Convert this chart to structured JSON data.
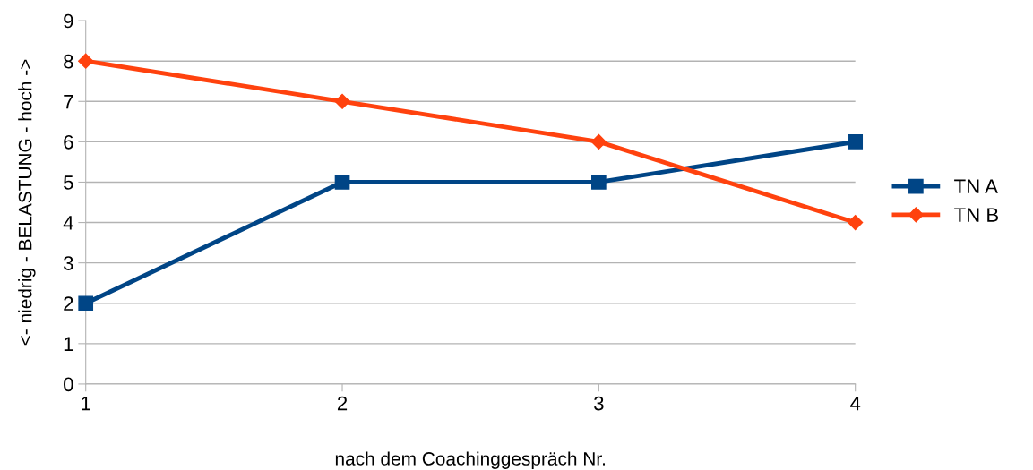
{
  "chart_data": {
    "type": "line",
    "xlabel": "nach dem Coachinggespräch Nr.",
    "ylabel": "<- niedrig - BELASTUNG - hoch ->",
    "x": [
      1,
      2,
      3,
      4
    ],
    "xlim": [
      1,
      4
    ],
    "xticks": [
      1,
      2,
      3,
      4
    ],
    "ylim": [
      0,
      9
    ],
    "yticks": [
      0,
      1,
      2,
      3,
      4,
      5,
      6,
      7,
      8,
      9
    ],
    "grid": "y",
    "legend": "right",
    "series": [
      {
        "name": "TN A",
        "color": "#004586",
        "values": [
          2,
          5,
          5,
          6
        ],
        "marker": "square"
      },
      {
        "name": "TN B",
        "color": "#ff420e",
        "values": [
          8,
          7,
          6,
          4
        ],
        "marker": "diamond"
      }
    ]
  }
}
